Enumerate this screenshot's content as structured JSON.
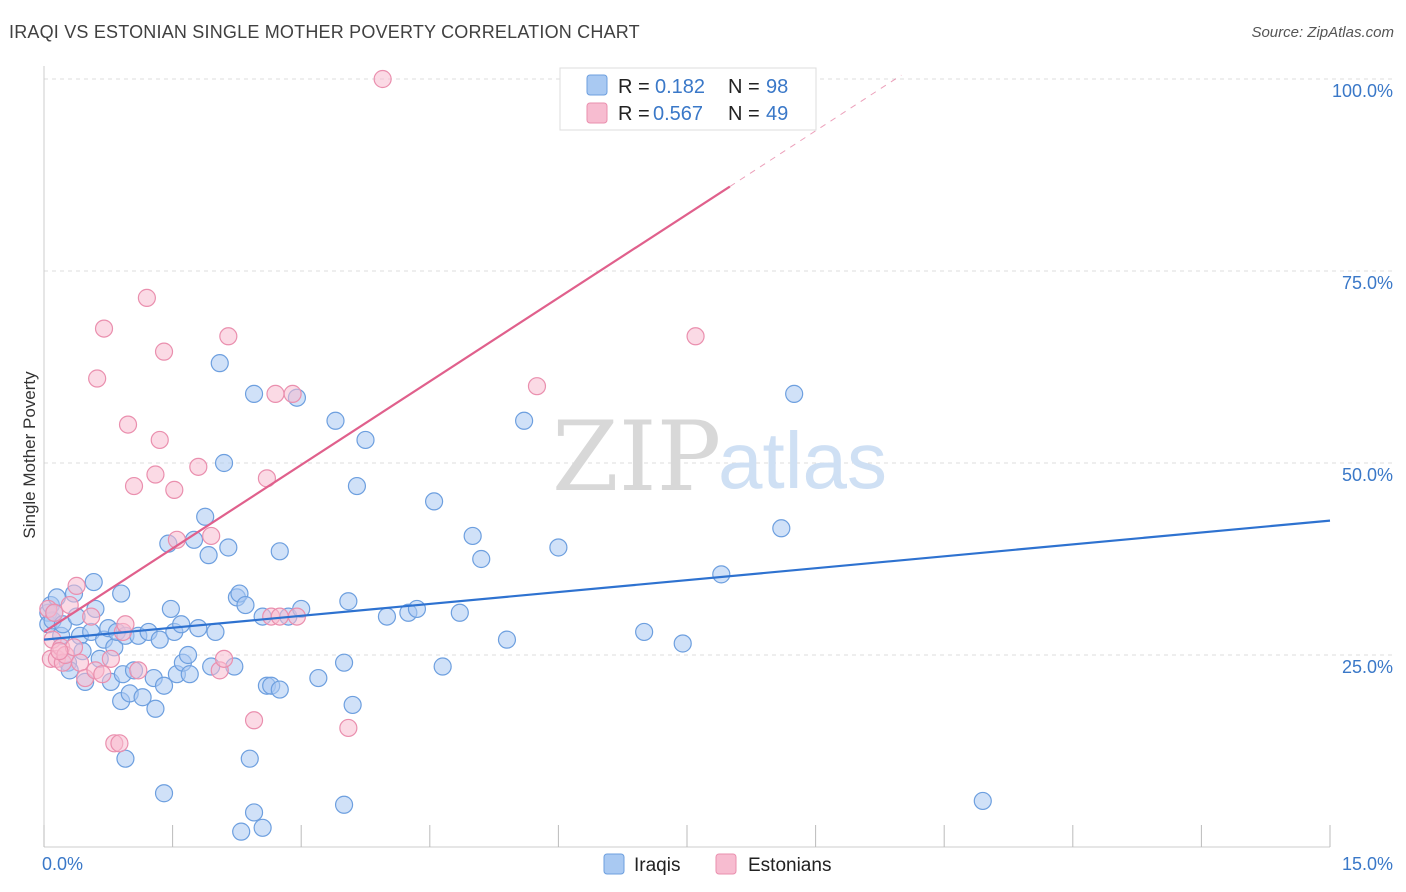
{
  "title": "IRAQI VS ESTONIAN SINGLE MOTHER POVERTY CORRELATION CHART",
  "source": "Source: ZipAtlas.com",
  "watermark": {
    "zip": "ZIP",
    "atlas": "atlas"
  },
  "colors": {
    "iraqi_fill": "#a9c9f2",
    "iraqi_stroke": "#6d9fdf",
    "iraqi_line": "#2e72d0",
    "estonian_fill": "#f7bcd0",
    "estonian_stroke": "#ea8fae",
    "estonian_line": "#e0608c",
    "tick_label": "#3a78c8",
    "grid": "#dddddd"
  },
  "legend": {
    "rows": [
      {
        "r_label": "R =",
        "r_value": "0.182",
        "n_label": "N =",
        "n_value": "98"
      },
      {
        "r_label": "R =",
        "r_value": "0.567",
        "n_label": "N =",
        "n_value": "49"
      }
    ]
  },
  "chart_data": {
    "type": "scatter",
    "title": "IRAQI VS ESTONIAN SINGLE MOTHER POVERTY CORRELATION CHART",
    "xlabel": "",
    "ylabel": "Single Mother Poverty",
    "xlim": [
      0,
      15
    ],
    "ylim": [
      0,
      100
    ],
    "x_tick_labels": [
      "0.0%",
      "15.0%"
    ],
    "y_ticks": [
      25,
      50,
      75,
      100
    ],
    "y_tick_labels": [
      "25.0%",
      "50.0%",
      "75.0%",
      "100.0%"
    ],
    "grid": true,
    "series": [
      {
        "name": "Iraqis",
        "r": 0.182,
        "n": 98,
        "trend": {
          "x": [
            0,
            15
          ],
          "y": [
            27.0,
            42.5
          ]
        },
        "points": [
          [
            0.05,
            30.5
          ],
          [
            0.05,
            29.0
          ],
          [
            0.08,
            31.5
          ],
          [
            0.1,
            29.5
          ],
          [
            0.12,
            30.5
          ],
          [
            0.15,
            32.5
          ],
          [
            0.2,
            27.5
          ],
          [
            0.22,
            29.0
          ],
          [
            0.28,
            24.0
          ],
          [
            0.3,
            23.0
          ],
          [
            0.35,
            33.0
          ],
          [
            0.38,
            30.0
          ],
          [
            0.42,
            27.5
          ],
          [
            0.45,
            25.5
          ],
          [
            0.48,
            21.5
          ],
          [
            0.55,
            28.0
          ],
          [
            0.58,
            34.5
          ],
          [
            0.6,
            31.0
          ],
          [
            0.65,
            24.5
          ],
          [
            0.7,
            27.0
          ],
          [
            0.75,
            28.5
          ],
          [
            0.78,
            21.5
          ],
          [
            0.82,
            26.0
          ],
          [
            0.85,
            28.0
          ],
          [
            0.9,
            19.0
          ],
          [
            0.92,
            22.5
          ],
          [
            0.95,
            27.5
          ],
          [
            1.0,
            20.0
          ],
          [
            1.05,
            23.0
          ],
          [
            1.1,
            27.5
          ],
          [
            1.15,
            19.5
          ],
          [
            1.22,
            28.0
          ],
          [
            1.28,
            22.0
          ],
          [
            1.3,
            18.0
          ],
          [
            1.35,
            27.0
          ],
          [
            1.4,
            21.0
          ],
          [
            1.45,
            39.5
          ],
          [
            1.48,
            31.0
          ],
          [
            1.52,
            28.0
          ],
          [
            1.55,
            22.5
          ],
          [
            1.6,
            29.0
          ],
          [
            1.62,
            24.0
          ],
          [
            1.68,
            25.0
          ],
          [
            1.7,
            22.5
          ],
          [
            1.75,
            40.0
          ],
          [
            1.8,
            28.5
          ],
          [
            1.88,
            43.0
          ],
          [
            1.92,
            38.0
          ],
          [
            1.95,
            23.5
          ],
          [
            2.0,
            28.0
          ],
          [
            2.05,
            63.0
          ],
          [
            2.1,
            50.0
          ],
          [
            2.15,
            39.0
          ],
          [
            2.22,
            23.5
          ],
          [
            2.25,
            32.5
          ],
          [
            2.28,
            33.0
          ],
          [
            2.35,
            31.5
          ],
          [
            2.4,
            11.5
          ],
          [
            2.45,
            59.0
          ],
          [
            2.55,
            30.0
          ],
          [
            2.6,
            21.0
          ],
          [
            2.65,
            21.0
          ],
          [
            2.75,
            38.5
          ],
          [
            2.85,
            30.0
          ],
          [
            2.95,
            58.5
          ],
          [
            3.0,
            31.0
          ],
          [
            3.2,
            22.0
          ],
          [
            3.4,
            55.5
          ],
          [
            3.5,
            24.0
          ],
          [
            3.55,
            32.0
          ],
          [
            3.6,
            18.5
          ],
          [
            3.65,
            47.0
          ],
          [
            3.75,
            53.0
          ],
          [
            4.0,
            30.0
          ],
          [
            4.25,
            30.5
          ],
          [
            4.35,
            31.0
          ],
          [
            4.55,
            45.0
          ],
          [
            4.65,
            23.5
          ],
          [
            4.85,
            30.5
          ],
          [
            5.0,
            40.5
          ],
          [
            5.1,
            37.5
          ],
          [
            5.4,
            27.0
          ],
          [
            5.6,
            55.5
          ],
          [
            6.0,
            39.0
          ],
          [
            7.0,
            28.0
          ],
          [
            7.45,
            26.5
          ],
          [
            7.9,
            35.5
          ],
          [
            8.6,
            41.5
          ],
          [
            8.75,
            59.0
          ],
          [
            10.95,
            6.0
          ],
          [
            1.4,
            7.0
          ],
          [
            2.45,
            4.5
          ],
          [
            2.55,
            2.5
          ],
          [
            3.5,
            5.5
          ],
          [
            2.3,
            2.0
          ],
          [
            0.9,
            33.0
          ],
          [
            0.95,
            11.5
          ],
          [
            2.75,
            20.5
          ]
        ]
      },
      {
        "name": "Estonians",
        "r": 0.567,
        "n": 49,
        "trend": {
          "x": [
            0,
            8.0
          ],
          "y": [
            28.0,
            86.0
          ],
          "dashed_to": [
            10.0,
            100.5
          ]
        },
        "points": [
          [
            0.05,
            31.0
          ],
          [
            0.08,
            24.5
          ],
          [
            0.1,
            27.0
          ],
          [
            0.12,
            30.5
          ],
          [
            0.15,
            24.5
          ],
          [
            0.2,
            26.0
          ],
          [
            0.22,
            24.0
          ],
          [
            0.25,
            25.0
          ],
          [
            0.3,
            31.5
          ],
          [
            0.35,
            26.0
          ],
          [
            0.38,
            34.0
          ],
          [
            0.42,
            24.0
          ],
          [
            0.48,
            22.0
          ],
          [
            0.55,
            30.0
          ],
          [
            0.6,
            23.0
          ],
          [
            0.62,
            61.0
          ],
          [
            0.68,
            22.5
          ],
          [
            0.7,
            67.5
          ],
          [
            0.78,
            24.5
          ],
          [
            0.82,
            13.5
          ],
          [
            0.88,
            13.5
          ],
          [
            0.92,
            28.0
          ],
          [
            0.95,
            29.0
          ],
          [
            0.98,
            55.0
          ],
          [
            1.05,
            47.0
          ],
          [
            1.1,
            23.0
          ],
          [
            1.2,
            71.5
          ],
          [
            1.3,
            48.5
          ],
          [
            1.35,
            53.0
          ],
          [
            1.4,
            64.5
          ],
          [
            1.52,
            46.5
          ],
          [
            1.55,
            40.0
          ],
          [
            1.8,
            49.5
          ],
          [
            1.95,
            40.5
          ],
          [
            2.05,
            23.0
          ],
          [
            2.1,
            24.5
          ],
          [
            2.15,
            66.5
          ],
          [
            2.45,
            16.5
          ],
          [
            2.6,
            48.0
          ],
          [
            2.65,
            30.0
          ],
          [
            2.7,
            59.0
          ],
          [
            2.75,
            30.0
          ],
          [
            2.9,
            59.0
          ],
          [
            2.95,
            30.0
          ],
          [
            3.55,
            15.5
          ],
          [
            3.95,
            100.0
          ],
          [
            5.75,
            60.0
          ],
          [
            7.6,
            66.5
          ],
          [
            0.18,
            25.5
          ]
        ]
      }
    ]
  }
}
